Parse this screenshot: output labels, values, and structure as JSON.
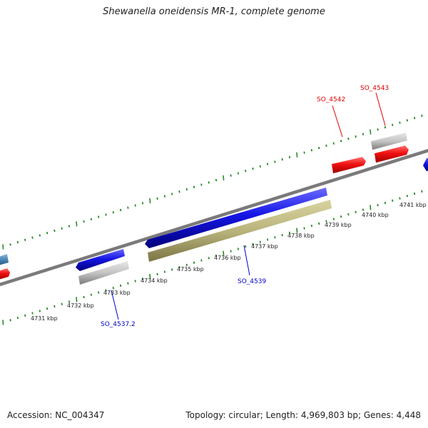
{
  "title": "Shewanella oneidensis MR-1, complete genome",
  "accession": "Accession: NC_004347",
  "summary": "Topology: circular; Length: 4,969,803 bp; Genes: 4,448",
  "colors": {
    "forward_gene": "#e8141a",
    "reverse_gene": "#1c1ce6",
    "rna_gray": "#c4c4c4",
    "olive_feature": "#b8b27a",
    "steelblue_feature": "#4a86b4",
    "backbone": "#7a7a7a",
    "tick": "#2a8a2a",
    "label_red": "#e00000",
    "label_blue": "#0000cc"
  },
  "scale_labels": [
    "4731 kbp",
    "4732 kbp",
    "4733 kbp",
    "4734 kbp",
    "4735 kbp",
    "4736 kbp",
    "4737 kbp",
    "4738 kbp",
    "4739 kbp",
    "4740 kbp",
    "4741 kbp"
  ],
  "gene_labels": {
    "so_4542": "SO_4542",
    "so_4543": "SO_4543",
    "so_4539": "SO_4539",
    "so_4537_2": "SO_4537.2"
  }
}
